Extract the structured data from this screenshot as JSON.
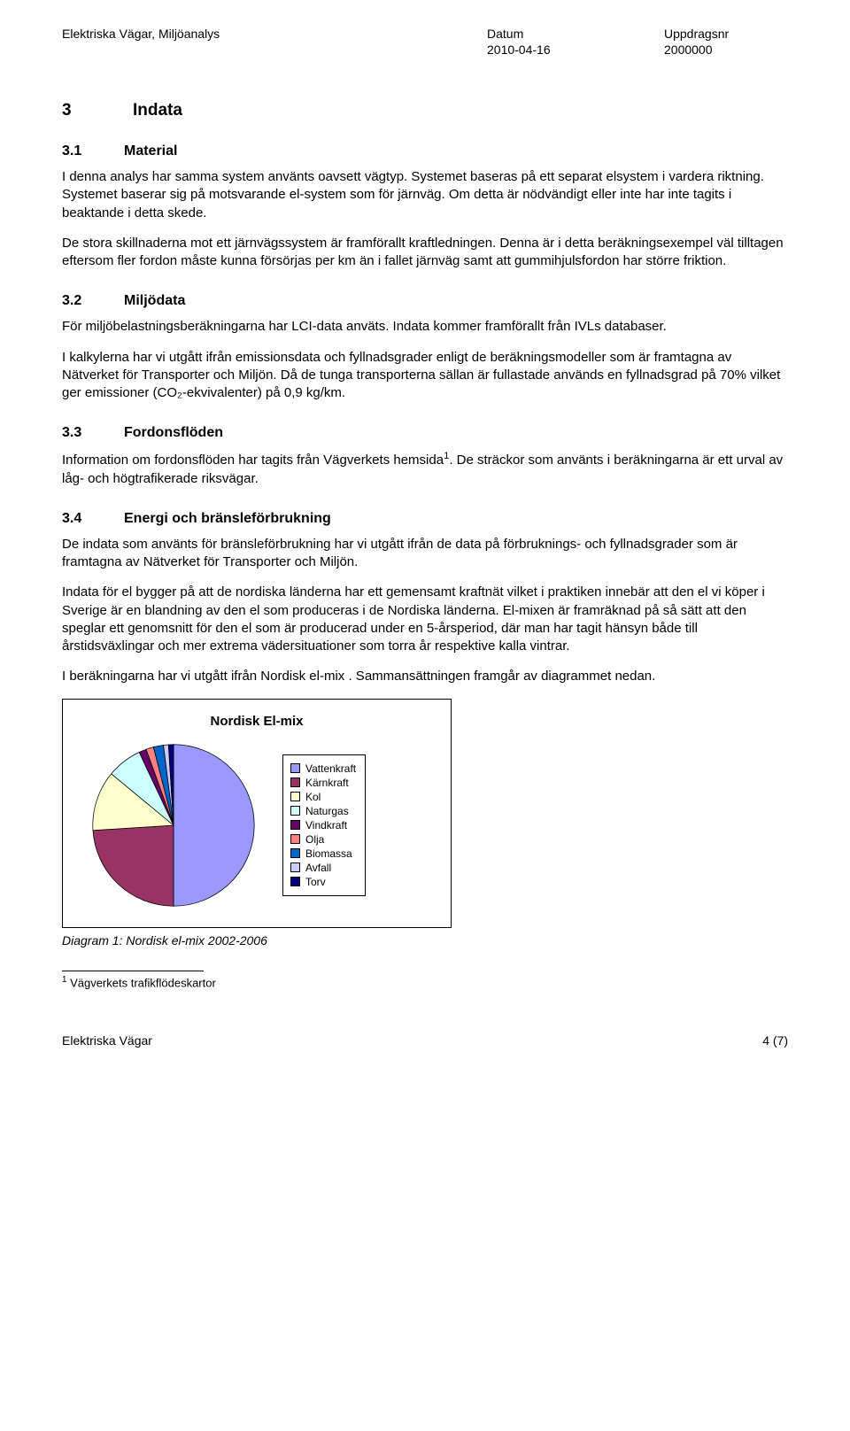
{
  "header": {
    "title_left": "Elektriska Vägar, Miljöanalys",
    "date_label": "Datum",
    "date_value": "2010-04-16",
    "order_label": "Uppdragsnr",
    "order_value": "2000000"
  },
  "s3": {
    "num": "3",
    "title": "Indata"
  },
  "s31": {
    "num": "3.1",
    "title": "Material",
    "p1": "I denna analys har samma system använts oavsett vägtyp. Systemet baseras på ett separat elsystem i vardera riktning. Systemet baserar sig på motsvarande el-system som för järnväg. Om detta är nödvändigt eller inte har inte tagits i beaktande i detta skede.",
    "p2": "De stora skillnaderna mot ett järnvägssystem är framförallt kraftledningen. Denna är i detta beräkningsexempel väl tilltagen eftersom fler fordon måste kunna försörjas per km än i fallet järnväg samt att gummihjulsfordon har större friktion."
  },
  "s32": {
    "num": "3.2",
    "title": "Miljödata",
    "p1": "För miljöbelastningsberäkningarna har LCI-data anväts. Indata kommer framförallt från IVLs databaser.",
    "p2": "I kalkylerna har vi utgått ifrån emissionsdata och fyllnadsgrader enligt de beräkningsmodeller som är framtagna av Nätverket för Transporter och Miljön. Då de tunga transporterna sällan är fullastade används en fyllnadsgrad på 70% vilket ger emissioner (CO₂-ekvivalenter) på 0,9 kg/km."
  },
  "s33": {
    "num": "3.3",
    "title": "Fordonsflöden",
    "p1_a": "Information om fordonsflöden har tagits från Vägverkets hemsida",
    "p1_b": ". De sträckor som använts i beräkningarna är ett urval av låg- och högtrafikerade riksvägar."
  },
  "s34": {
    "num": "3.4",
    "title": "Energi och bränsleförbrukning",
    "p1": "De indata som använts för bränsleförbrukning har vi utgått ifrån de data på förbruknings- och fyllnadsgrader som är framtagna av Nätverket för Transporter och Miljön.",
    "p2": "Indata för el bygger på att de nordiska länderna har ett gemensamt kraftnät vilket i praktiken innebär att den el vi köper i Sverige är en blandning av den el som produceras i de Nordiska länderna. El-mixen är framräknad på så sätt att den speglar ett genomsnitt för den el som är producerad under en 5-årsperiod, där man har tagit hänsyn både till årstidsväxlingar och mer extrema vädersituationer som torra år respektive kalla vintrar.",
    "p3": "I beräkningarna har vi utgått ifrån Nordisk el-mix . Sammansättningen framgår av diagrammet nedan."
  },
  "chart": {
    "type": "pie",
    "title": "Nordisk El-mix",
    "background_color": "#ffffff",
    "border_color": "#000000",
    "slices": [
      {
        "label": "Vattenkraft",
        "value": 50,
        "color": "#9999ff"
      },
      {
        "label": "Kärnkraft",
        "value": 24,
        "color": "#993366"
      },
      {
        "label": "Kol",
        "value": 12,
        "color": "#ffffcc"
      },
      {
        "label": "Naturgas",
        "value": 7,
        "color": "#ccffff"
      },
      {
        "label": "Vindkraft",
        "value": 1.5,
        "color": "#660066"
      },
      {
        "label": "Olja",
        "value": 1.5,
        "color": "#ff8080"
      },
      {
        "label": "Biomassa",
        "value": 2,
        "color": "#0066cc"
      },
      {
        "label": "Avfall",
        "value": 1,
        "color": "#ccccff"
      },
      {
        "label": "Torv",
        "value": 1,
        "color": "#000080"
      }
    ],
    "caption": "Diagram 1: Nordisk el-mix 2002-2006"
  },
  "footnote": {
    "marker": "1",
    "text": "Vägverkets trafikflödeskartor"
  },
  "footer": {
    "left": "Elektriska Vägar",
    "right": "4 (7)"
  }
}
